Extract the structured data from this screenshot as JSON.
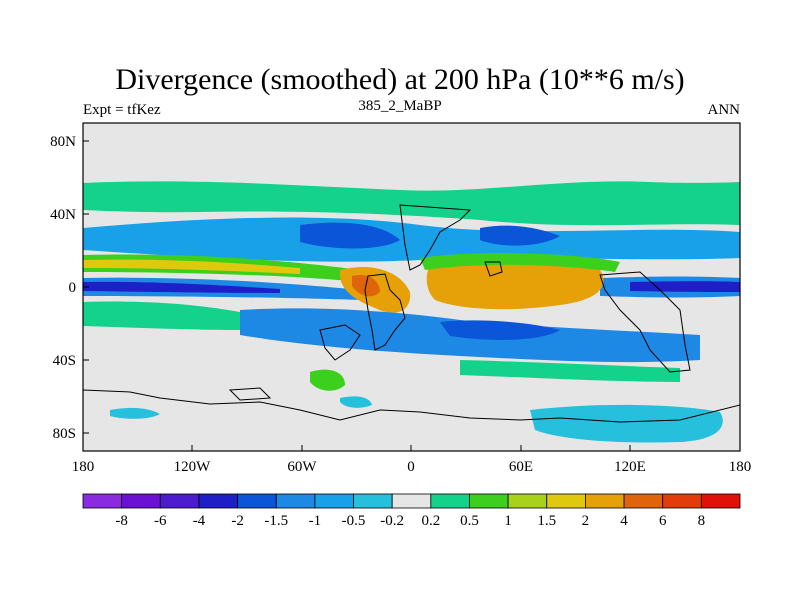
{
  "header": {
    "title": "Divergence (smoothed) at 200 hPa (10**6 m/s)",
    "left_label": "Expt = tfKez",
    "center_label": "385_2_MaBP",
    "right_label": "ANN"
  },
  "map": {
    "projection": "cylindrical-equidistant",
    "background_color": "#e6e6e6",
    "lat_ticks": [
      "80N",
      "40N",
      "0",
      "40S",
      "80S"
    ],
    "lon_ticks": [
      "180",
      "120W",
      "60W",
      "0",
      "60E",
      "120E",
      "180"
    ]
  },
  "colorbar": {
    "levels": [
      "-8",
      "-6",
      "-4",
      "-2",
      "-1.5",
      "-1",
      "-0.5",
      "-0.2",
      "0.2",
      "0.5",
      "1",
      "1.5",
      "2",
      "4",
      "6",
      "8"
    ],
    "colors": [
      "#8a2be2",
      "#6a11d4",
      "#4d1ccf",
      "#1f1fc8",
      "#0a55d8",
      "#1e88e5",
      "#18a1e8",
      "#26c0dc",
      "#e6e6e6",
      "#14d28c",
      "#3ccf1e",
      "#a8d21a",
      "#e0c80f",
      "#e6a008",
      "#e0640a",
      "#e23c0a",
      "#e0100a"
    ]
  }
}
